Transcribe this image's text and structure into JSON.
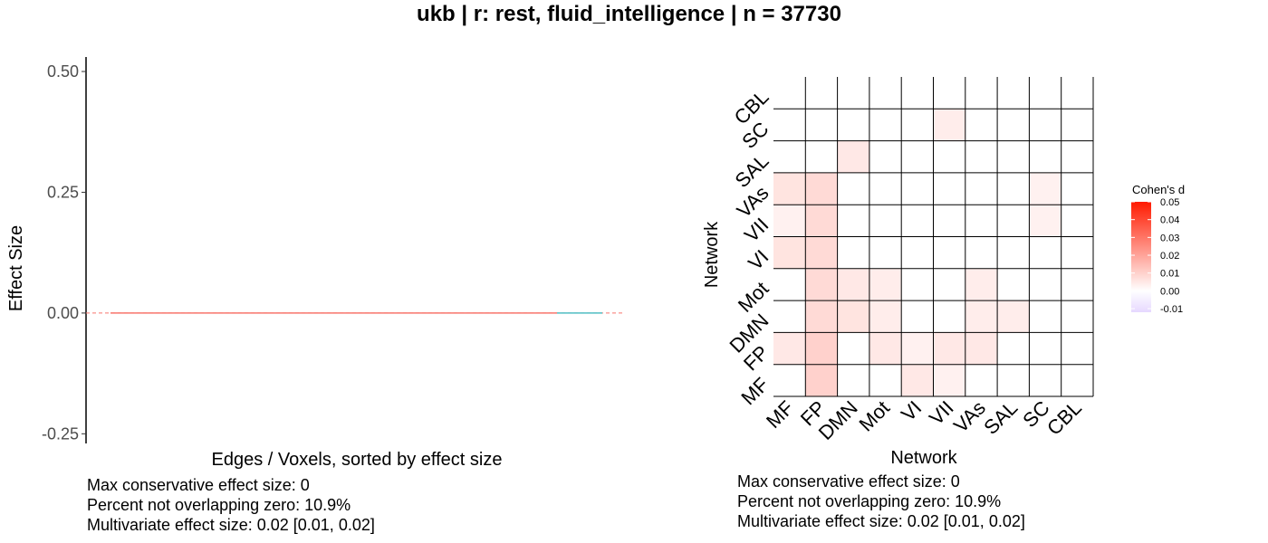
{
  "title": "ukb | r: rest, fluid_intelligence | n = 37730",
  "chart_data": [
    {
      "type": "line",
      "xlabel": "Edges / Voxels, sorted by effect size",
      "ylabel": "Effect Size",
      "ylim": [
        -0.27,
        0.53
      ],
      "yticks": [
        -0.25,
        0.0,
        0.25,
        0.5
      ],
      "ytick_labels": [
        "-0.25",
        "0.00",
        "0.25",
        "0.50"
      ],
      "reference_line": 0.0,
      "series": [
        {
          "values": [
            0.0,
            0.0,
            0.0,
            0.0,
            0.0,
            0.0,
            0.0,
            0.0,
            0.0
          ],
          "color": "#f8766d"
        },
        {
          "values": [
            0.0,
            0.0
          ],
          "color": "#4fbfc4"
        }
      ],
      "grid": false
    },
    {
      "type": "heatmap",
      "xlabel": "Network",
      "ylabel": "Network",
      "x_categories": [
        "MF",
        "FP",
        "DMN",
        "Mot",
        "VI",
        "VII",
        "VAs",
        "SAL",
        "SC",
        "CBL"
      ],
      "y_categories": [
        "MF",
        "FP",
        "DMN",
        "Mot",
        "VI",
        "VII",
        "VAs",
        "SAL",
        "SC",
        "CBL"
      ],
      "values": [
        [
          0.0,
          0.01,
          0.0,
          0.0,
          0.005,
          0.003,
          0.0,
          0.0,
          0.0,
          0.0
        ],
        [
          0.005,
          0.01,
          0.0,
          0.005,
          0.003,
          0.005,
          0.005,
          0.0,
          0.0,
          0.0
        ],
        [
          0.0,
          0.008,
          0.006,
          0.004,
          0.0,
          0.0,
          0.004,
          0.004,
          0.0,
          0.0
        ],
        [
          0.0,
          0.008,
          0.005,
          0.004,
          0.0,
          0.0,
          0.004,
          0.0,
          0.0,
          0.0
        ],
        [
          0.006,
          0.008,
          0.0,
          0.0,
          0.0,
          0.0,
          0.0,
          0.0,
          0.0,
          0.0
        ],
        [
          0.003,
          0.008,
          0.0,
          0.0,
          0.0,
          0.0,
          0.0,
          0.0,
          0.003,
          0.0
        ],
        [
          0.006,
          0.008,
          0.0,
          0.0,
          0.0,
          0.0,
          0.0,
          0.0,
          0.003,
          0.0
        ],
        [
          0.0,
          0.0,
          0.005,
          0.0,
          0.0,
          0.0,
          0.0,
          0.0,
          0.0,
          0.0
        ],
        [
          0.0,
          0.0,
          0.0,
          0.0,
          0.0,
          0.004,
          0.0,
          0.0,
          0.0,
          0.0
        ],
        [
          0.0,
          0.0,
          0.0,
          0.0,
          0.0,
          0.0,
          0.0,
          0.0,
          0.0,
          0.0
        ]
      ],
      "legend": {
        "title": "Cohen's d",
        "ticks": [
          0.05,
          0.04,
          0.03,
          0.02,
          0.01,
          0.0,
          -0.01
        ],
        "tick_labels": [
          "0.05",
          "0.04",
          "0.03",
          "0.02",
          "0.01",
          "0.00",
          "-0.01"
        ],
        "scale_min": -0.012,
        "scale_max": 0.05,
        "color_low": "#e6d8ff",
        "color_mid": "#ffffff",
        "color_high": "#ff1a00"
      }
    }
  ],
  "stats_left": [
    "Max conservative effect size: 0",
    "Percent not overlapping zero: 10.9%",
    "Multivariate effect size: 0.02 [0.01, 0.02]"
  ],
  "stats_right": [
    "Max conservative effect size: 0",
    "Percent not overlapping zero: 10.9%",
    "Multivariate effect size: 0.02 [0.01, 0.02]"
  ]
}
